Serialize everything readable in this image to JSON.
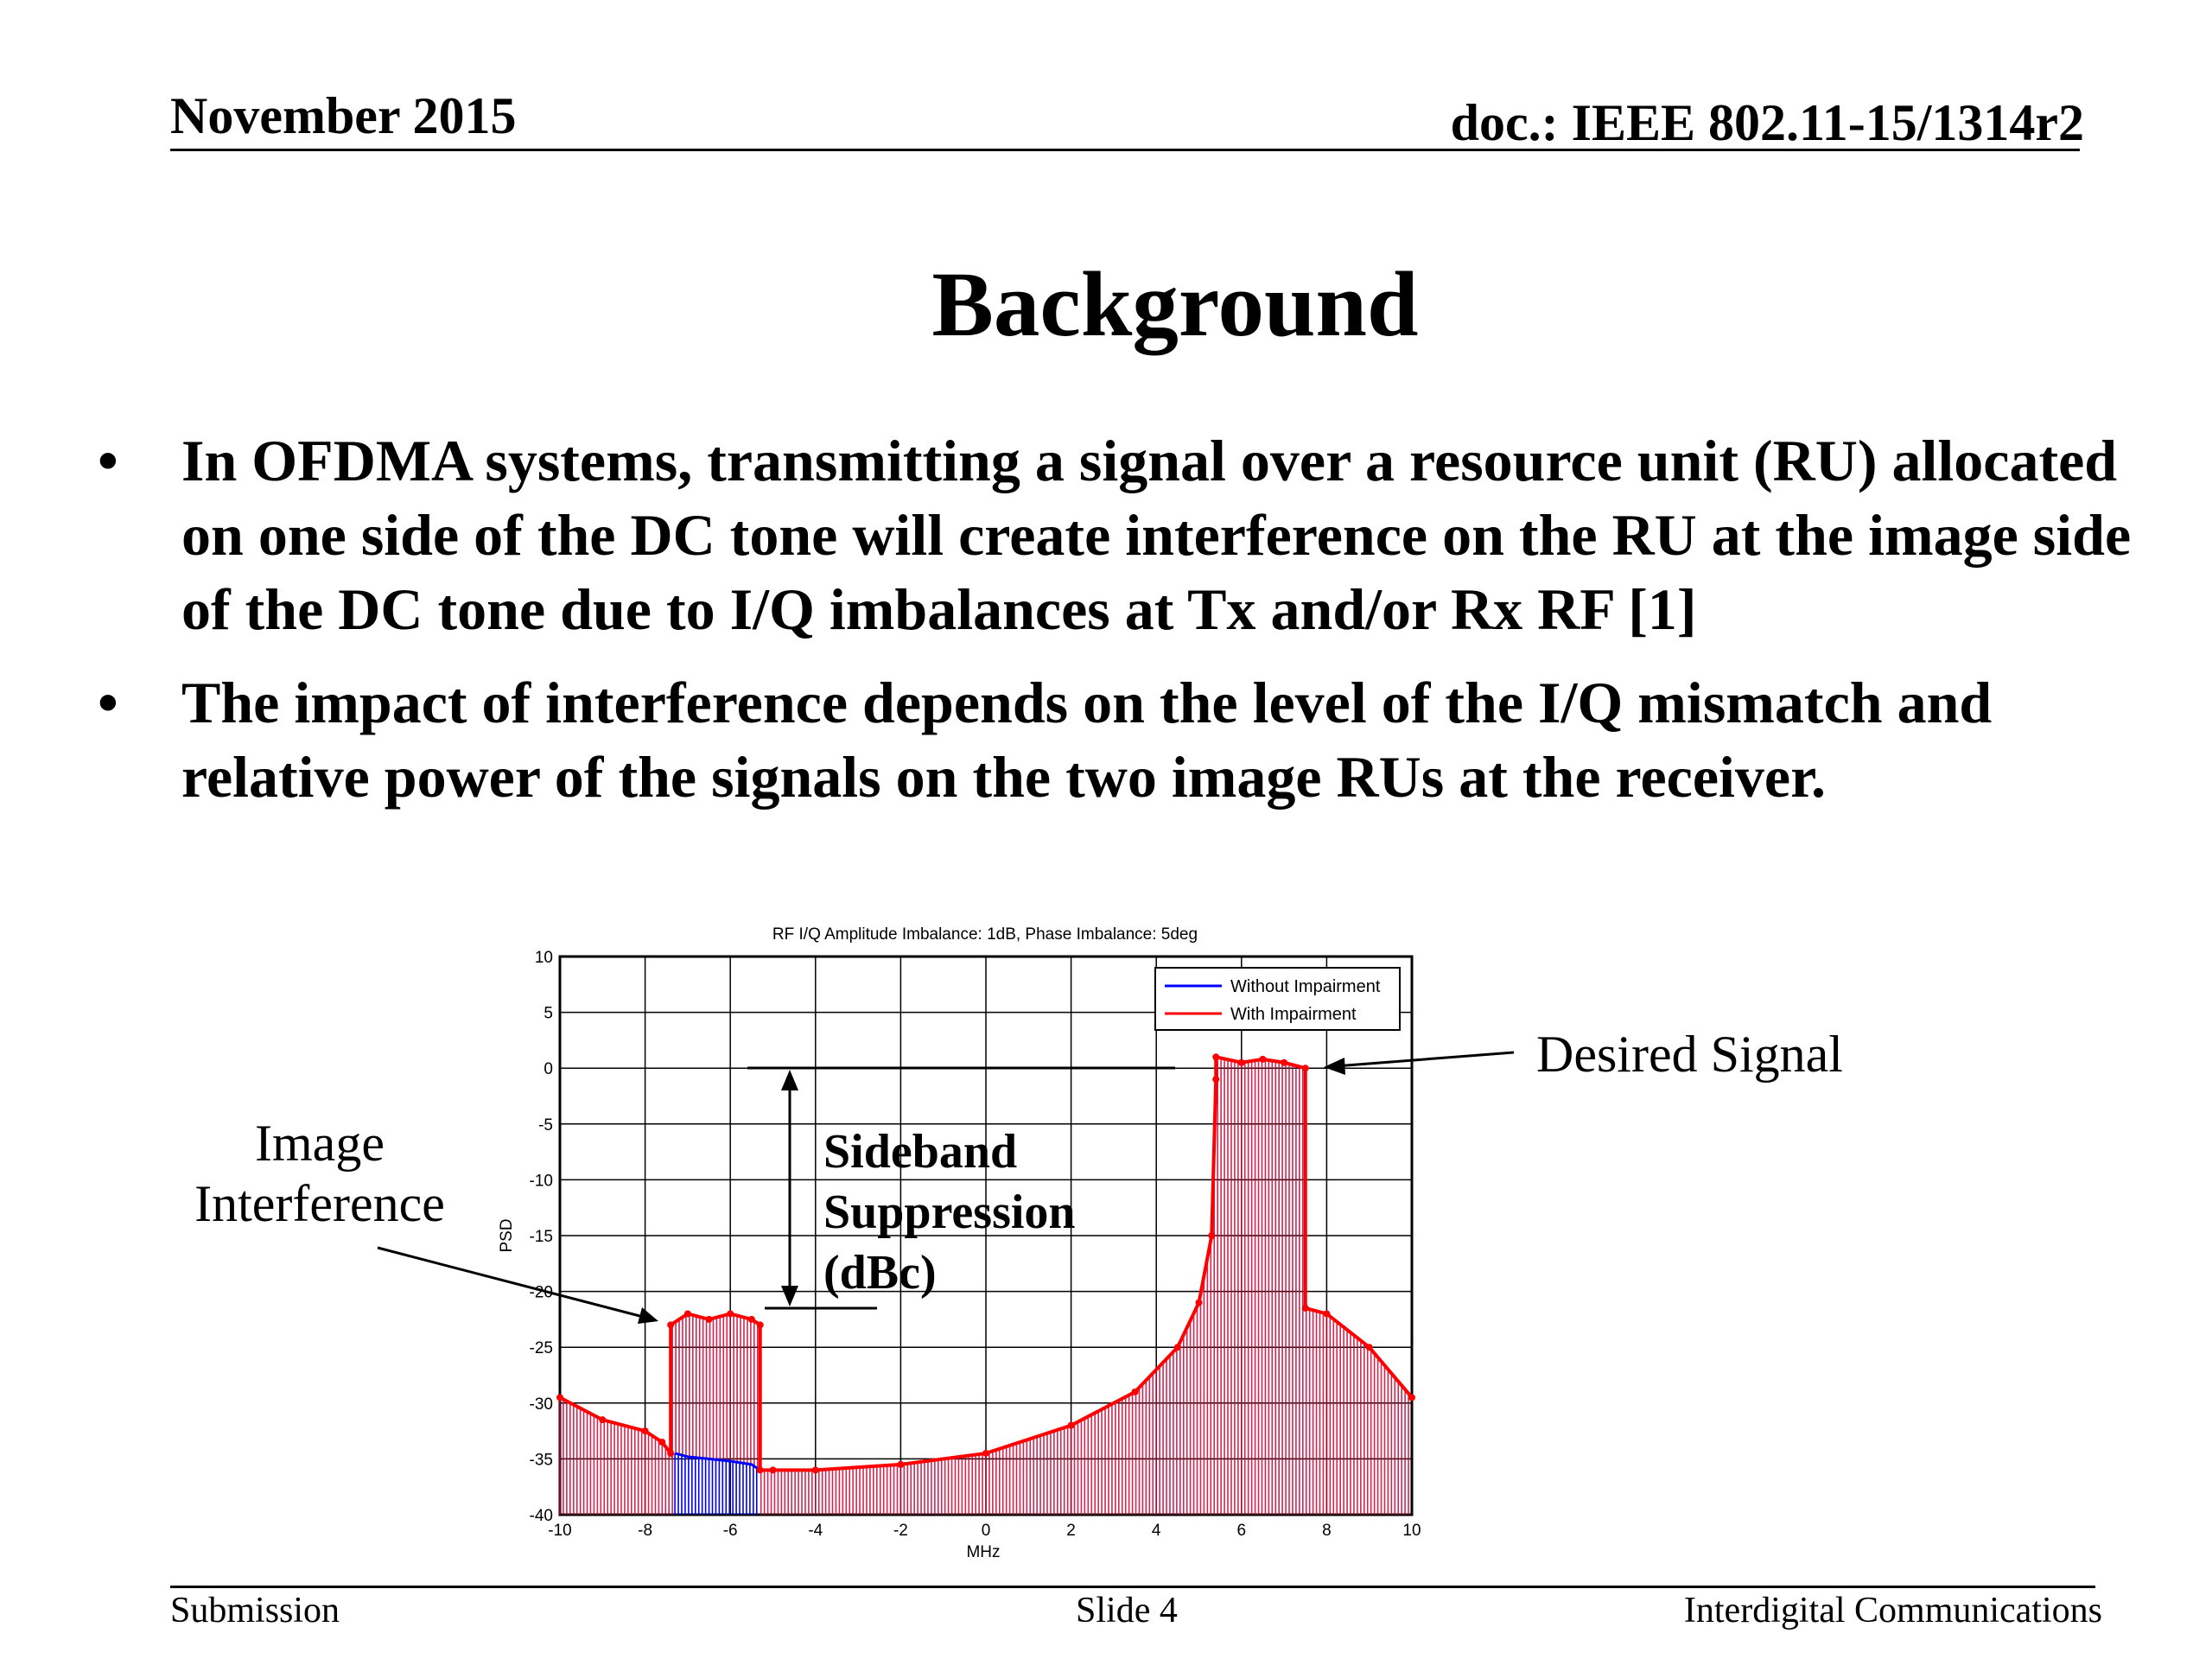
{
  "header": {
    "date": "November 2015",
    "doc": "doc.: IEEE 802.11-15/1314r2"
  },
  "title": "Background",
  "bullets": [
    "In OFDMA systems, transmitting a signal over a resource unit (RU) allocated on one side of the DC tone will create interference on the RU at the image side of the DC tone due to I/Q imbalances at Tx and/or Rx RF [1]",
    "The impact of interference depends on the level of the I/Q mismatch and relative power of the signals on the two image RUs at the receiver."
  ],
  "bullet_symbol": "•",
  "annotations": {
    "image_interference": "Image Interference",
    "desired_signal": "Desired Signal",
    "sideband_suppression": "Sideband Suppression (dBc)"
  },
  "footer": {
    "left": "Submission",
    "center": "Slide 4",
    "right": "Interdigital Communications"
  },
  "chart_data": {
    "type": "line",
    "title": "RF I/Q Amplitude Imbalance: 1dB, Phase Imbalance: 5deg",
    "xlabel": "MHz",
    "ylabel": "PSD",
    "xlim": [
      -10,
      10
    ],
    "ylim": [
      -40,
      10
    ],
    "xticks": [
      -10,
      -8,
      -6,
      -4,
      -2,
      0,
      2,
      4,
      6,
      8,
      10
    ],
    "yticks": [
      10,
      5,
      0,
      -5,
      -10,
      -15,
      -20,
      -25,
      -30,
      -35,
      -40
    ],
    "grid": true,
    "legend_position": "top-right",
    "colors": {
      "without": "#0000ff",
      "with": "#ff0000",
      "stem_with": "#cc0033"
    },
    "series": [
      {
        "name": "Without Impairment",
        "x": [
          -7.3,
          -7.0,
          -6.5,
          -6.0,
          -5.5,
          -5.3
        ],
        "y": [
          -34.5,
          -34.8,
          -35.0,
          -35.2,
          -35.5,
          -36.0
        ]
      },
      {
        "name": "With Impairment",
        "x": [
          -10,
          -9,
          -8,
          -7.6,
          -7.4,
          -7.4,
          -7.0,
          -6.5,
          -6.0,
          -5.5,
          -5.3,
          -5.3,
          -5.0,
          -4.0,
          -2.0,
          0.0,
          2.0,
          3.5,
          4.5,
          5.0,
          5.3,
          5.4,
          5.4,
          6.0,
          6.5,
          7.0,
          7.5,
          7.5,
          8.0,
          9.0,
          10.0
        ],
        "y": [
          -29.5,
          -31.5,
          -32.5,
          -33.5,
          -34.5,
          -23,
          -22,
          -22.5,
          -22,
          -22.5,
          -23,
          -36,
          -36,
          -36,
          -35.5,
          -34.5,
          -32,
          -29,
          -25,
          -21,
          -15,
          -1,
          1,
          0.5,
          0.8,
          0.5,
          0,
          -21.5,
          -22,
          -25,
          -29.5
        ]
      }
    ]
  }
}
